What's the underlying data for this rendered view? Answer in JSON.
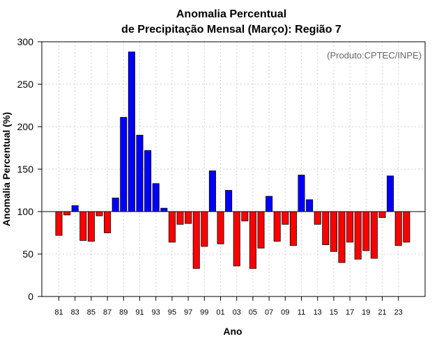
{
  "chart_data": {
    "type": "bar",
    "title_line1": "Anomalia Percentual",
    "title_line2": "de Precipitação Mensal (Março): Região 7",
    "xlabel": "Ano",
    "ylabel": "Anomalia Percentual (%)",
    "credit": "(Produto:CPTEC/INPE)",
    "ylim": [
      0,
      300
    ],
    "yticks": [
      0,
      50,
      100,
      150,
      200,
      250,
      300
    ],
    "baseline": 100,
    "grid": true,
    "colors": {
      "above": "#0000ff",
      "below": "#ff0000",
      "border": "#000000",
      "grid": "#d3d3d3"
    },
    "categories": [
      "81",
      "82",
      "83",
      "84",
      "85",
      "86",
      "87",
      "88",
      "89",
      "90",
      "91",
      "92",
      "93",
      "94",
      "95",
      "96",
      "97",
      "98",
      "99",
      "00",
      "01",
      "02",
      "03",
      "04",
      "05",
      "06",
      "07",
      "08",
      "09",
      "10",
      "11",
      "12",
      "13",
      "14",
      "15",
      "16",
      "17",
      "18",
      "19",
      "20",
      "21",
      "22",
      "23",
      "24"
    ],
    "tick_labels": [
      "81",
      "83",
      "85",
      "87",
      "89",
      "91",
      "93",
      "95",
      "97",
      "99",
      "01",
      "03",
      "05",
      "07",
      "09",
      "11",
      "13",
      "15",
      "17",
      "19",
      "21",
      "23"
    ],
    "values": [
      72,
      96,
      107,
      66,
      65,
      95,
      75,
      116,
      211,
      288,
      190,
      172,
      133,
      104,
      64,
      85,
      86,
      33,
      59,
      148,
      62,
      125,
      36,
      89,
      33,
      57,
      118,
      65,
      85,
      60,
      143,
      114,
      85,
      61,
      53,
      40,
      64,
      44,
      54,
      45,
      93,
      142,
      60,
      64
    ]
  }
}
